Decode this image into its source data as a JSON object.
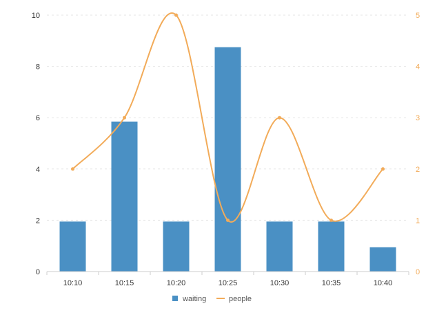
{
  "chart_data": {
    "type": "bar",
    "categories": [
      "10:10",
      "10:15",
      "10:20",
      "10:25",
      "10:30",
      "10:35",
      "10:40"
    ],
    "series": [
      {
        "name": "waiting",
        "type": "bar",
        "axis": "left",
        "color": "#4a90c4",
        "values": [
          1.95,
          5.85,
          1.95,
          8.75,
          1.95,
          1.95,
          0.95
        ]
      },
      {
        "name": "people",
        "type": "line",
        "smooth": true,
        "axis": "right",
        "color": "#f2ab59",
        "values": [
          2,
          3,
          5,
          1,
          3,
          1,
          2
        ]
      }
    ],
    "y_left": {
      "min": 0,
      "max": 10,
      "ticks": [
        "0",
        "2",
        "4",
        "6",
        "8",
        "10"
      ]
    },
    "y_right": {
      "min": 0,
      "max": 5,
      "ticks": [
        "0",
        "1",
        "2",
        "3",
        "4",
        "5"
      ]
    },
    "grid": true,
    "legend_position": "bottom"
  }
}
